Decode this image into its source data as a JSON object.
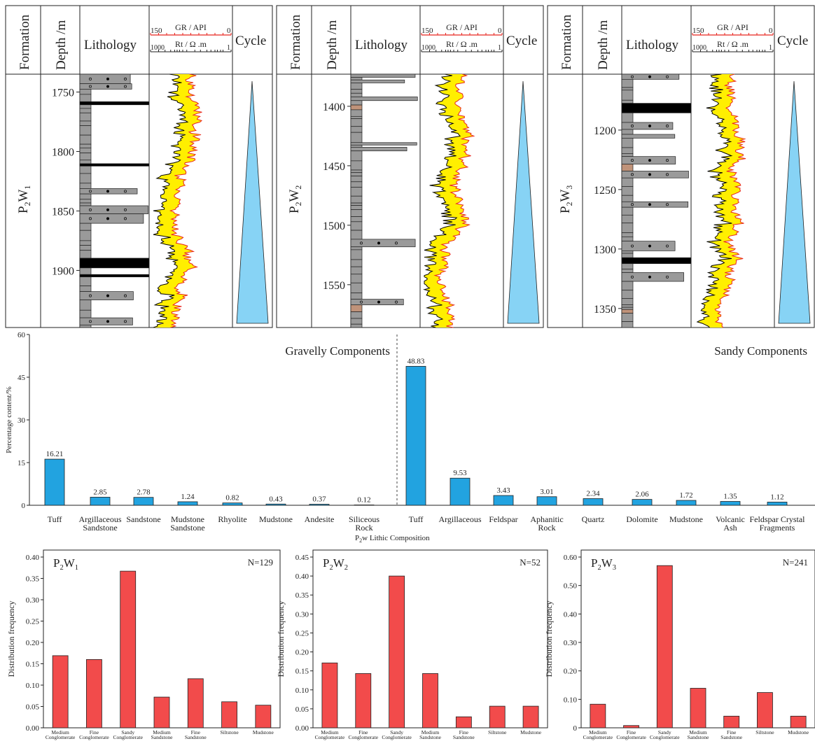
{
  "well_logs": {
    "headers": {
      "formation": "Formation",
      "depth": "Depth /m",
      "lithology": "Lithology",
      "gr": "GR / API",
      "rt": "Rt / Ω .m",
      "cycle": "Cycle",
      "gr_left": "150",
      "gr_right": "0",
      "rt_left": "1000",
      "rt_right": "1"
    },
    "colors": {
      "gr": "#e8251f",
      "fill": "#ffef00",
      "rt": "#000000",
      "cycle": "#87d3f5",
      "rock": "#9a9a9a",
      "mud": "#c0937a"
    },
    "panels": [
      {
        "formation_main": "P",
        "formation_sub1": "2",
        "formation_w": "W",
        "formation_sub2": "1",
        "depth_ticks": [
          "1750",
          "1800",
          "1850",
          "1900"
        ],
        "depth_range": [
          1735,
          1948
        ],
        "tick_values": [
          1750,
          1800,
          1850,
          1900
        ]
      },
      {
        "formation_main": "P",
        "formation_sub1": "2",
        "formation_w": "W",
        "formation_sub2": "2",
        "depth_ticks": [
          "1400",
          "1450",
          "1500",
          "1550"
        ],
        "depth_range": [
          1373,
          1586
        ],
        "tick_values": [
          1400,
          1450,
          1500,
          1550
        ]
      },
      {
        "formation_main": "P",
        "formation_sub1": "2",
        "formation_w": "W",
        "formation_sub2": "3",
        "depth_ticks": [
          "1200",
          "1250",
          "1300",
          "1350"
        ],
        "depth_range": [
          1153,
          1366
        ],
        "tick_values": [
          1200,
          1250,
          1300,
          1350
        ]
      }
    ]
  },
  "chart_data": [
    {
      "type": "bar",
      "title": "",
      "xlabel_main": "P",
      "xlabel_sub1": "2",
      "xlabel_w": "w Lithic Composition",
      "ylabel": "Percentage content/%",
      "ylim": [
        0,
        60
      ],
      "yticks": [
        "0",
        "15",
        "30",
        "45",
        "60"
      ],
      "group_labels": [
        "Gravelly Components",
        "Sandy Components"
      ],
      "color": "#22a3e0",
      "groups": [
        {
          "categories": [
            [
              "Tuff"
            ],
            [
              "Argillaceous",
              "Sandstone"
            ],
            [
              "Sandstone"
            ],
            [
              "Mudstone",
              "Sandstone"
            ],
            [
              "Rhyolite"
            ],
            [
              "Mudstone"
            ],
            [
              "Andesite"
            ],
            [
              "Siliceous",
              "Rock"
            ]
          ],
          "values": [
            16.21,
            2.85,
            2.78,
            1.24,
            0.82,
            0.43,
            0.37,
            0.12
          ],
          "labels": [
            "16.21",
            "2.85",
            "2.78",
            "1.24",
            "0.82",
            "0.43",
            "0.37",
            "0.12"
          ]
        },
        {
          "categories": [
            [
              "Tuff"
            ],
            [
              "Argillaceous"
            ],
            [
              "Feldspar"
            ],
            [
              "Aphanitic",
              "Rock"
            ],
            [
              "Quartz"
            ],
            [
              "Dolomite"
            ],
            [
              "Mudstone"
            ],
            [
              "Volcanic",
              "Ash"
            ],
            [
              "Feldspar Crystal",
              "Fragments"
            ]
          ],
          "values": [
            48.83,
            9.53,
            3.43,
            3.01,
            2.34,
            2.06,
            1.72,
            1.35,
            1.12
          ],
          "labels": [
            "48.83",
            "9.53",
            "3.43",
            "3.01",
            "2.34",
            "2.06",
            "1.72",
            "1.35",
            "1.12"
          ]
        }
      ]
    },
    {
      "type": "bar",
      "panel_main": "P",
      "panel_sub1": "2",
      "panel_w": "W",
      "panel_sub2": "1",
      "n_label": "N=129",
      "ylabel": "Distribution frequency",
      "ylim": [
        0,
        0.4
      ],
      "yticks": [
        "0.00",
        "0.05",
        "0.10",
        "0.15",
        "0.20",
        "0.25",
        "0.30",
        "0.35",
        "0.40"
      ],
      "categories": [
        [
          "Medium",
          "Conglomerate"
        ],
        [
          "Fine",
          "Conglomerate"
        ],
        [
          "Sandy",
          "Conglomerate"
        ],
        [
          "Medium",
          "Sandstone"
        ],
        [
          "Fine",
          "Sandstone"
        ],
        [
          "Siltstone"
        ],
        [
          "Mudstone"
        ]
      ],
      "values": [
        0.169,
        0.16,
        0.367,
        0.072,
        0.115,
        0.061,
        0.053
      ],
      "color": "#f24b4b"
    },
    {
      "type": "bar",
      "panel_main": "P",
      "panel_sub1": "2",
      "panel_w": "W",
      "panel_sub2": "2",
      "n_label": "N=52",
      "ylabel": "Distribution frequency",
      "ylim": [
        0,
        0.45
      ],
      "yticks": [
        "0.00",
        "0.05",
        "0.10",
        "0.15",
        "0.20",
        "0.25",
        "0.30",
        "0.35",
        "0.40",
        "0.45"
      ],
      "categories": [
        [
          "Medium",
          "Conglomerate"
        ],
        [
          "Fine",
          "Conglomerate"
        ],
        [
          "Sandy",
          "Conglomerate"
        ],
        [
          "Medium",
          "Sandstone"
        ],
        [
          "Fine",
          "Sandstone"
        ],
        [
          "Siltstone"
        ],
        [
          "Mudstone"
        ]
      ],
      "values": [
        0.171,
        0.143,
        0.4,
        0.143,
        0.029,
        0.057,
        0.057
      ],
      "color": "#f24b4b"
    },
    {
      "type": "bar",
      "panel_main": "P",
      "panel_sub1": "2",
      "panel_w": "W",
      "panel_sub2": "3",
      "n_label": "N=241",
      "ylabel": "Distribution frequency",
      "ylim": [
        0,
        0.6
      ],
      "yticks": [
        "0",
        "0.10",
        "0.20",
        "0.30",
        "0.40",
        "0.50",
        "0.60"
      ],
      "categories": [
        [
          "Medium",
          "Conglomerate"
        ],
        [
          "Fine",
          "Conglomerate"
        ],
        [
          "Sandy",
          "Conglomerate"
        ],
        [
          "Medium",
          "Sandstone"
        ],
        [
          "Fine",
          "Sandstone"
        ],
        [
          "Siltstone"
        ],
        [
          "Mudstone"
        ]
      ],
      "values": [
        0.083,
        0.008,
        0.57,
        0.139,
        0.041,
        0.124,
        0.041
      ],
      "color": "#f24b4b"
    }
  ]
}
